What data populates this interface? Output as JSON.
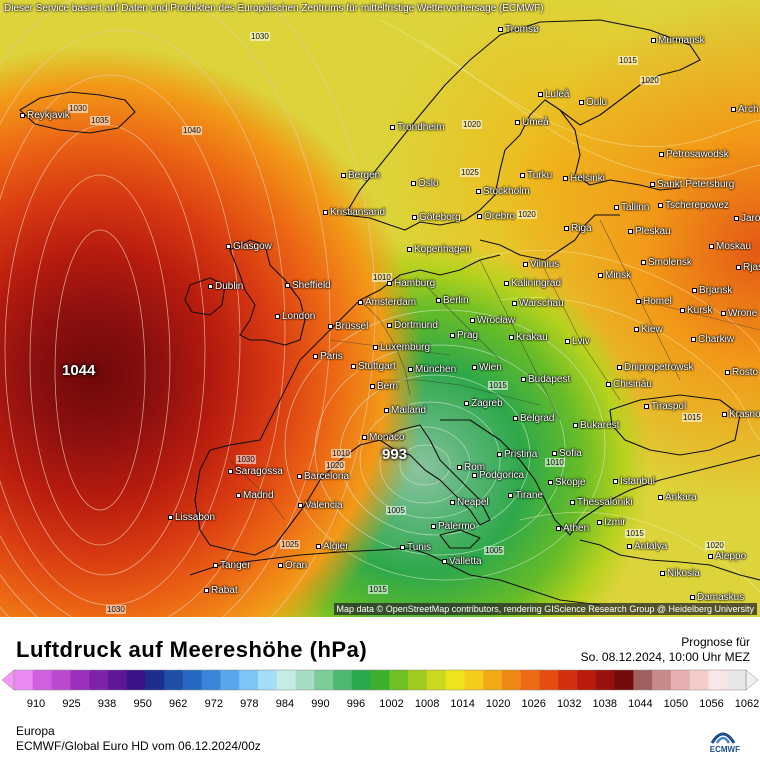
{
  "map": {
    "credit_top": "Dieser Service basiert auf Daten und Produkten des Europäischen Zentrums für mittelfristige Wettervorhersage (ECMWF)",
    "credit_bottom": "Map data © OpenStreetMap contributors, rendering GIScience Research Group @ Heidelberg University",
    "high_label": "1044",
    "low_label": "993",
    "isobar_labels": [
      "1030",
      "1035",
      "1040",
      "1030",
      "1025",
      "1020",
      "1015",
      "1010",
      "1005",
      "1025",
      "1020",
      "1015",
      "1030",
      "1015",
      "1015",
      "1020",
      "1010",
      "1030",
      "1025",
      "1020",
      "1010",
      "1015",
      "1020",
      "1005"
    ],
    "cities": [
      "Tromsø",
      "Murmansk",
      "Reykjavik",
      "Luleå",
      "Oulu",
      "Arch",
      "Umeå",
      "Trondheim",
      "Petrosawodsk",
      "Turku",
      "Helsinki",
      "Bergen",
      "Oslo",
      "Stockholm",
      "Sankt Petersburg",
      "Kristiansand",
      "Göteborg",
      "Orebro",
      "Tallinn",
      "Tscherepowez",
      "Jaros",
      "Glasgow",
      "Kopenhagen",
      "Riga",
      "Pleskau",
      "Moskau",
      "Dublin",
      "Sheffield",
      "Hamburg",
      "Vilnius",
      "Minsk",
      "Smolensk",
      "Rjas",
      "Kaliningrad",
      "Amsterdam",
      "Berlin",
      "Warschau",
      "Brjansk",
      "Homel",
      "London",
      "Brüssel",
      "Dortmund",
      "Wrocław",
      "Kursk",
      "Wrone",
      "Luxemburg",
      "Prag",
      "Krakau",
      "Kiew",
      "Charkiw",
      "Paris",
      "Lviv",
      "Stuttgart",
      "München",
      "Wien",
      "Budapest",
      "Dnipropetrowsk",
      "Rosto",
      "Bern",
      "Chisinău",
      "Mailand",
      "Zagreb",
      "Tiraspol",
      "Krasno",
      "Belgrad",
      "Bukarest",
      "Monaco",
      "Saragossa",
      "Barcelona",
      "Pristina",
      "Sofia",
      "Rom",
      "Podgorica",
      "Madrid",
      "Skopje",
      "Istanbul",
      "Ankara",
      "Tirane",
      "Neapel",
      "Thessaloniki",
      "Lissabon",
      "Valencia",
      "Izmir",
      "Athen",
      "Palermo",
      "Algier",
      "Tunis",
      "Antalya",
      "Aleppo",
      "Tanger",
      "Oran",
      "Valletta",
      "Nikosia",
      "Rabat",
      "Damaskus"
    ]
  },
  "legend": {
    "title": "Luftdruck auf Meereshöhe (hPa)",
    "forecast_label": "Prognose für",
    "forecast_time": "So. 08.12.2024, 10:00 Uhr MEZ",
    "ticks": [
      "910",
      "925",
      "938",
      "950",
      "962",
      "972",
      "978",
      "984",
      "990",
      "996",
      "1002",
      "1008",
      "1014",
      "1020",
      "1026",
      "1032",
      "1038",
      "1044",
      "1050",
      "1056",
      "1062"
    ],
    "region": "Europa",
    "model": "ECMWF/Global Euro HD vom  06.12.2024/00z",
    "logo_text": "ECMWF",
    "colors": [
      "#e88af0",
      "#d25ee0",
      "#b94ad0",
      "#9c32bc",
      "#7e22a8",
      "#5e1694",
      "#3a1486",
      "#1c2e8c",
      "#1e4ea8",
      "#2668c2",
      "#3a86d8",
      "#5aa6ec",
      "#7ec6f6",
      "#a4def6",
      "#c6ece6",
      "#a8dcc4",
      "#7ccc9a",
      "#4cb870",
      "#2aa84a",
      "#3cb02c",
      "#6ec024",
      "#a0cc20",
      "#ccd81e",
      "#eee41e",
      "#f6cc1c",
      "#f4aa18",
      "#f08a16",
      "#ec6a14",
      "#e44c12",
      "#d22e10",
      "#b81a0e",
      "#96100c",
      "#740a0a",
      "#a06060",
      "#c88a8a",
      "#e6aeb0",
      "#f4cccc",
      "#fae6e6",
      "#e8e8e8"
    ]
  }
}
